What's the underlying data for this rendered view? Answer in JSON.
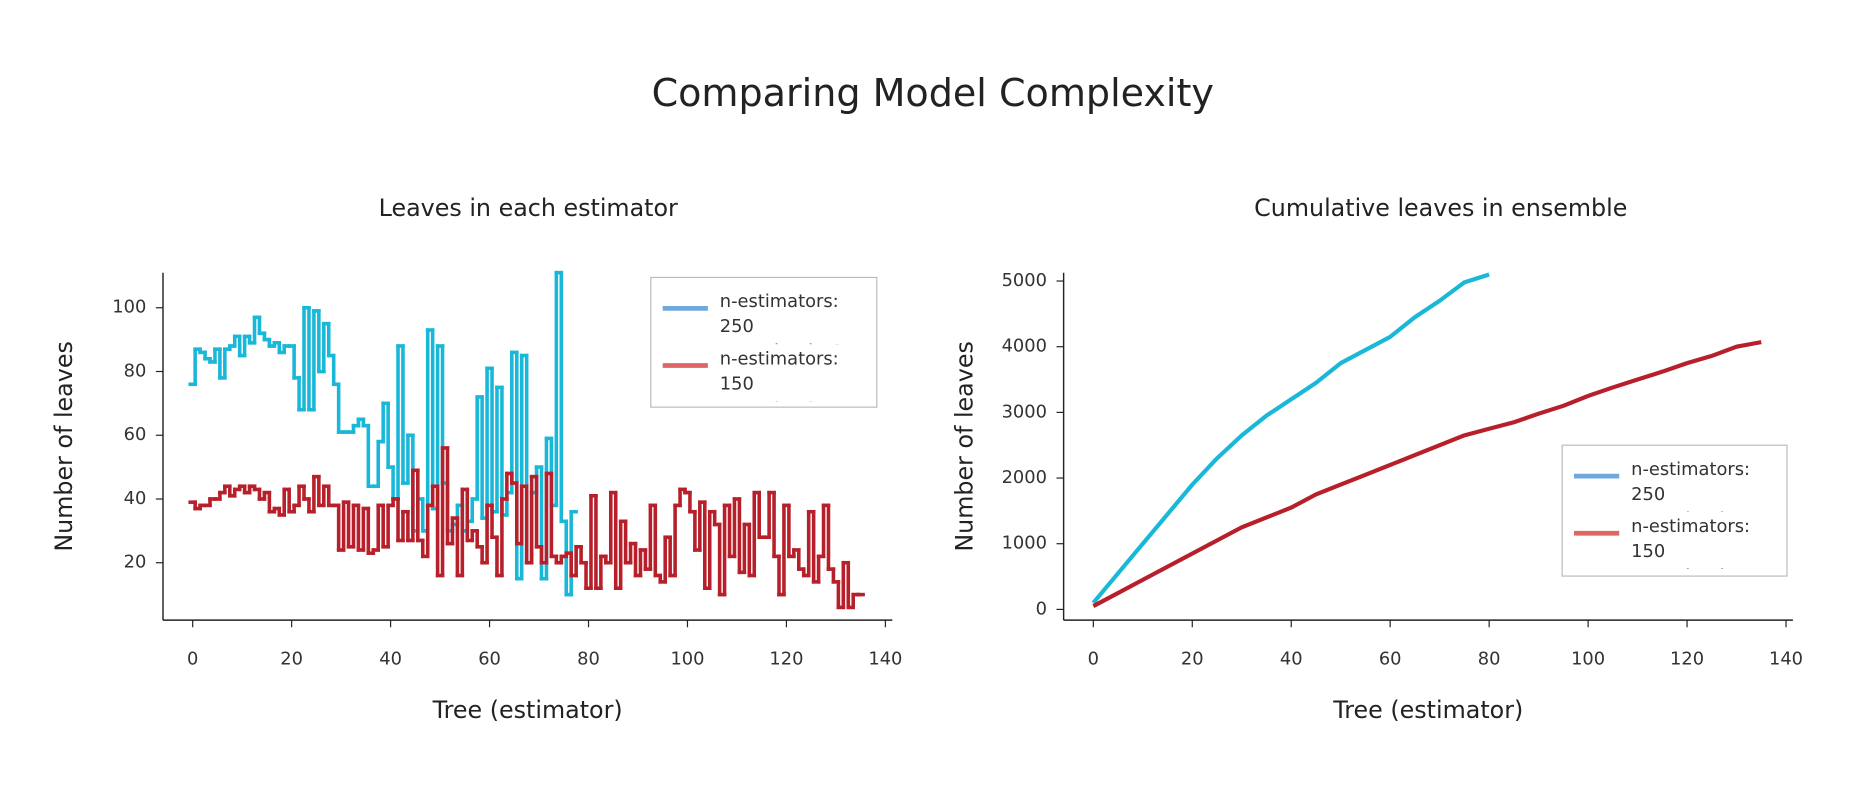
{
  "title": "Comparing Model Complexity",
  "chart_data": [
    {
      "type": "line",
      "drawstyle": "steps-mid",
      "title": "Leaves in each estimator",
      "xlabel": "Tree (estimator)",
      "ylabel": "Number of leaves",
      "xlim": [
        -6,
        141.4
      ],
      "xticks": [
        0,
        20,
        40,
        60,
        80,
        100,
        120,
        140
      ],
      "ylim": [
        2,
        111
      ],
      "yticks": [
        20,
        40,
        60,
        80,
        100
      ],
      "legend": "upper right",
      "series": [
        {
          "name": "n-estimators: 250\nmax_depth: 8",
          "color": "#1ab8d8",
          "legend_color": "#6fa8dc",
          "values": [
            76,
            87,
            86,
            84,
            83,
            87,
            78,
            87,
            88,
            91,
            85,
            91,
            89,
            97,
            92,
            90,
            88,
            89,
            86,
            88,
            88,
            78,
            68,
            100,
            68,
            99,
            80,
            95,
            85,
            76,
            61,
            61,
            61,
            63,
            65,
            63,
            44,
            44,
            58,
            70,
            50,
            40,
            88,
            45,
            60,
            30,
            40,
            30,
            93,
            37,
            88,
            45,
            30,
            32,
            38,
            30,
            33,
            40,
            72,
            34,
            81,
            36,
            75,
            35,
            42,
            86,
            15,
            85,
            20,
            42,
            50,
            15,
            59,
            38,
            111,
            33,
            10,
            36
          ]
        },
        {
          "name": "n-estimators: 150\nmax_depth: 6",
          "color": "#b7202a",
          "legend_color": "#e06666",
          "values": [
            39,
            37,
            38,
            38,
            40,
            40,
            42,
            44,
            41,
            43,
            44,
            42,
            44,
            43,
            40,
            42,
            36,
            37,
            35,
            43,
            36,
            38,
            44,
            40,
            36,
            47,
            38,
            44,
            38,
            38,
            24,
            39,
            25,
            38,
            24,
            37,
            23,
            24,
            38,
            25,
            38,
            40,
            27,
            36,
            27,
            49,
            27,
            22,
            38,
            44,
            16,
            56,
            26,
            34,
            16,
            43,
            27,
            30,
            25,
            20,
            38,
            28,
            16,
            40,
            48,
            45,
            26,
            44,
            20,
            47,
            25,
            20,
            48,
            22,
            20,
            22,
            23,
            16,
            25,
            20,
            12,
            41,
            12,
            22,
            20,
            42,
            12,
            33,
            20,
            26,
            16,
            24,
            18,
            38,
            16,
            14,
            28,
            16,
            38,
            43,
            42,
            36,
            24,
            39,
            12,
            36,
            32,
            10,
            38,
            22,
            40,
            17,
            32,
            16,
            42,
            28,
            28,
            42,
            22,
            10,
            38,
            22,
            24,
            18,
            16,
            36,
            14,
            22,
            38,
            18,
            14,
            6,
            20,
            6,
            10,
            10
          ]
        }
      ]
    },
    {
      "type": "line",
      "title": "Cumulative leaves in ensemble",
      "xlabel": "Tree (estimator)",
      "ylabel": "Number of leaves",
      "xlim": [
        -6,
        141.4
      ],
      "xticks": [
        0,
        20,
        40,
        60,
        80,
        100,
        120,
        140
      ],
      "ylim": [
        -163,
        5127
      ],
      "yticks": [
        0,
        1000,
        2000,
        3000,
        4000,
        5000
      ],
      "legend": "lower right",
      "series": [
        {
          "name": "n-estimators: 250\nmax_depth: 8",
          "color": "#1ab8d8",
          "legend_color": "#6fa8dc",
          "x": [
            0,
            5,
            10,
            15,
            20,
            25,
            30,
            35,
            40,
            45,
            50,
            55,
            60,
            65,
            70,
            75,
            80
          ],
          "values": [
            100,
            550,
            1000,
            1450,
            1900,
            2300,
            2650,
            2950,
            3200,
            3450,
            3750,
            3950,
            4150,
            4450,
            4700,
            4980,
            5100
          ]
        },
        {
          "name": "n-estimators: 150\nmax_depth: 6",
          "color": "#b7202a",
          "legend_color": "#e06666",
          "x": [
            0,
            5,
            10,
            15,
            20,
            25,
            30,
            35,
            40,
            45,
            50,
            55,
            60,
            65,
            70,
            75,
            80,
            85,
            90,
            95,
            100,
            105,
            110,
            115,
            120,
            125,
            130,
            135
          ],
          "values": [
            50,
            250,
            450,
            650,
            850,
            1050,
            1250,
            1400,
            1550,
            1750,
            1900,
            2050,
            2200,
            2350,
            2500,
            2650,
            2750,
            2850,
            2980,
            3100,
            3250,
            3380,
            3500,
            3620,
            3750,
            3860,
            4000,
            4070
          ]
        }
      ]
    }
  ]
}
